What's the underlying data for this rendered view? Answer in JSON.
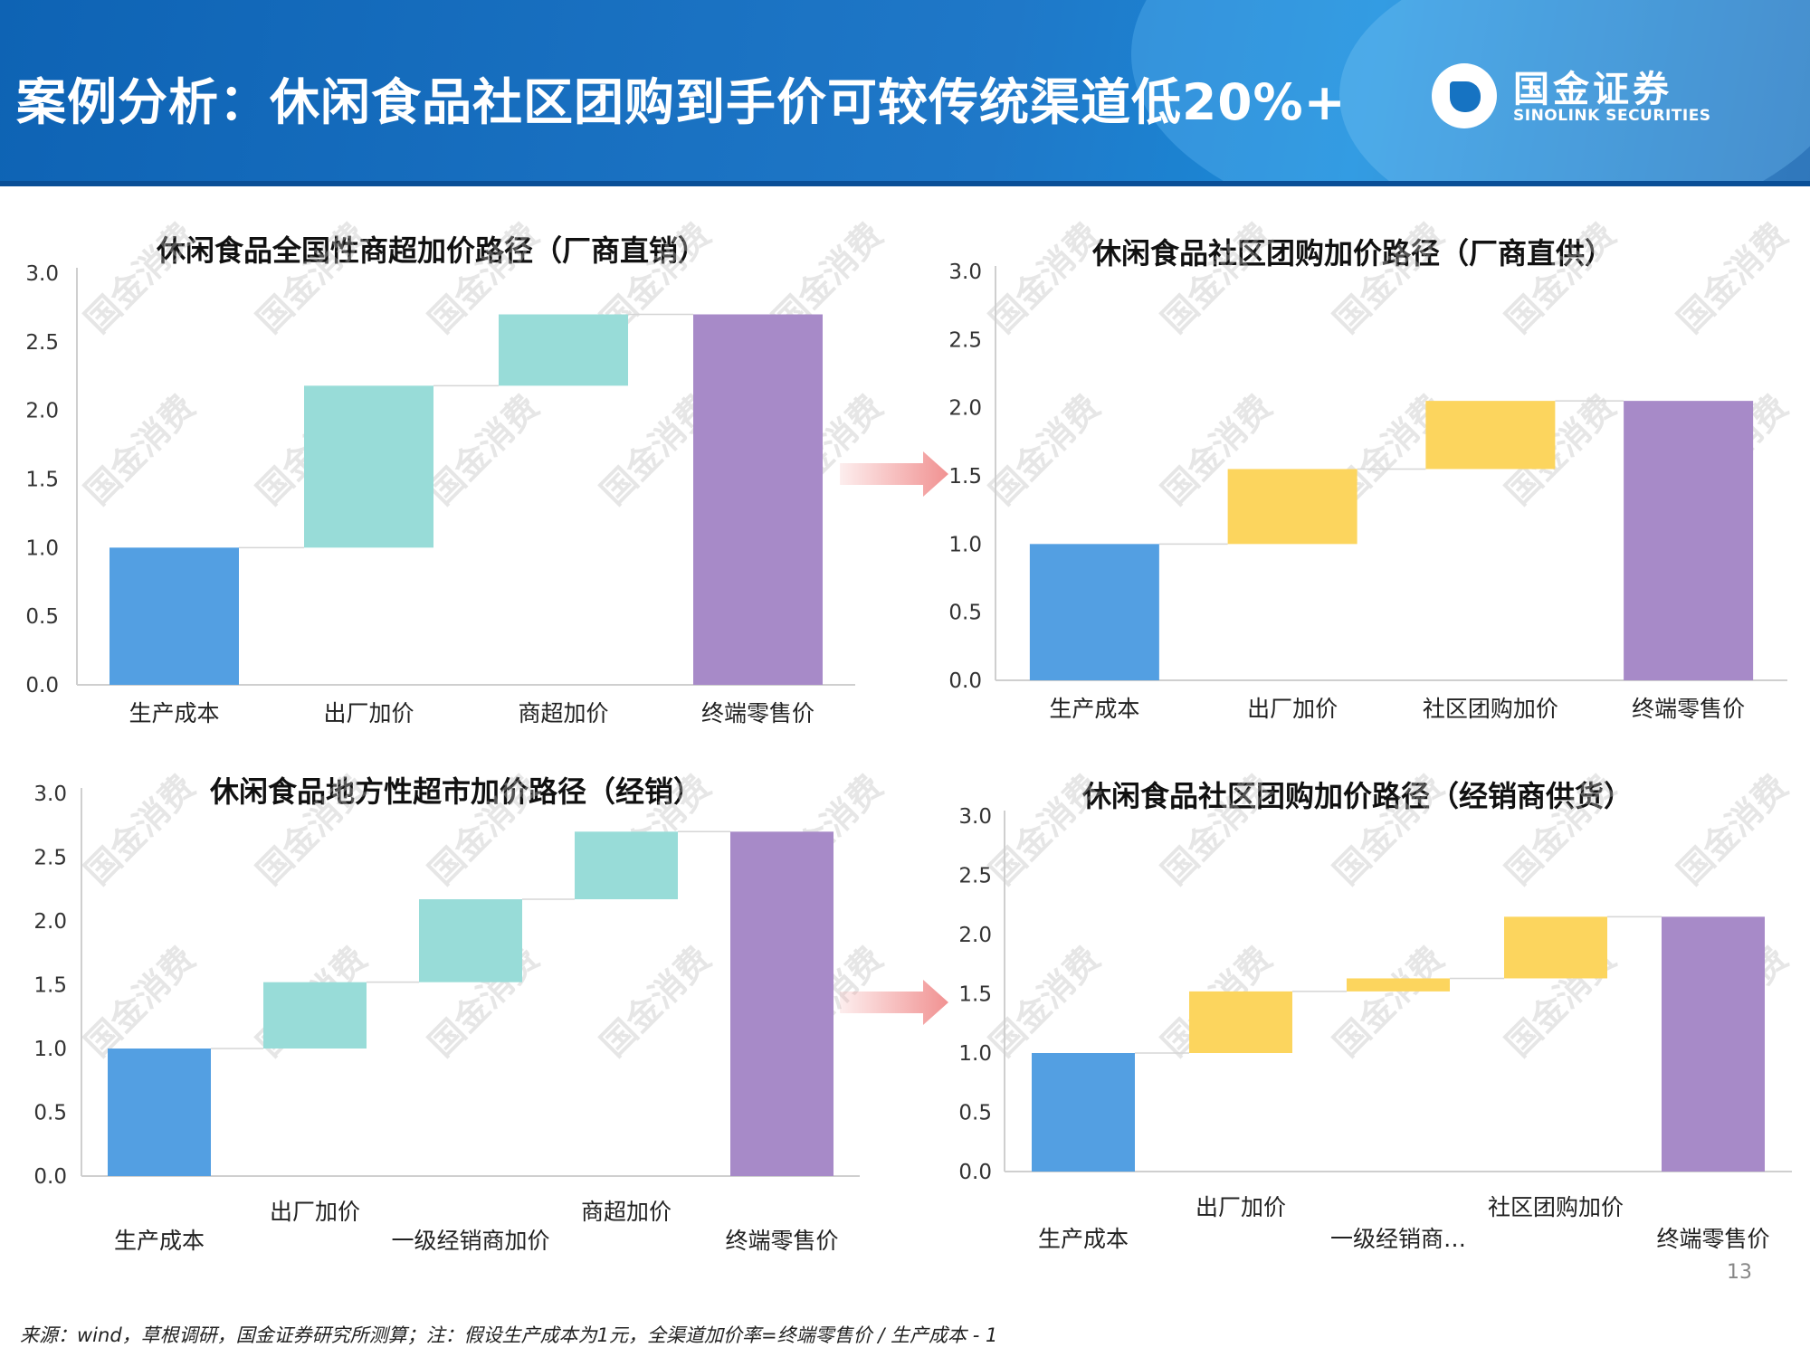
{
  "header": {
    "title": "案例分析：休闲食品社区团购到手价可较传统渠道低20%+",
    "logo_cn": "国金证券",
    "logo_en": "SINOLINK SECURITIES"
  },
  "watermark_text": "国金消费",
  "colors": {
    "cost": "#539fe2",
    "teal": "#98dcd8",
    "yellow": "#fcd55e",
    "purple": "#a78ac8",
    "arrow": "#f08c8c"
  },
  "chart_data": [
    {
      "type": "bar",
      "subtype": "waterfall",
      "title": "休闲食品全国性商超加价路径（厂商直销）",
      "categories": [
        "生产成本",
        "出厂加价",
        "商超加价",
        "终端零售价"
      ],
      "bars": [
        {
          "base": 0,
          "top": 1.0,
          "kind": "cost"
        },
        {
          "base": 1.0,
          "top": 2.18,
          "kind": "teal"
        },
        {
          "base": 2.18,
          "top": 2.7,
          "kind": "teal"
        },
        {
          "base": 0,
          "top": 2.7,
          "kind": "purple"
        }
      ],
      "ylim": [
        0,
        3.0
      ],
      "yticks": [
        "0.0",
        "0.5",
        "1.0",
        "1.5",
        "2.0",
        "2.5",
        "3.0"
      ],
      "grid": false
    },
    {
      "type": "bar",
      "subtype": "waterfall",
      "title": "休闲食品社区团购加价路径（厂商直供）",
      "categories": [
        "生产成本",
        "出厂加价",
        "社区团购加价",
        "终端零售价"
      ],
      "bars": [
        {
          "base": 0,
          "top": 1.0,
          "kind": "cost"
        },
        {
          "base": 1.0,
          "top": 1.55,
          "kind": "yellow"
        },
        {
          "base": 1.55,
          "top": 2.05,
          "kind": "yellow"
        },
        {
          "base": 0,
          "top": 2.05,
          "kind": "purple"
        }
      ],
      "ylim": [
        0,
        3.0
      ],
      "yticks": [
        "0.0",
        "0.5",
        "1.0",
        "1.5",
        "2.0",
        "2.5",
        "3.0"
      ],
      "grid": false
    },
    {
      "type": "bar",
      "subtype": "waterfall",
      "title": "休闲食品地方性超市加价路径（经销）",
      "categories": [
        "生产成本",
        "出厂加价",
        "一级经销商加价",
        "商超加价",
        "终端零售价"
      ],
      "bars": [
        {
          "base": 0,
          "top": 1.0,
          "kind": "cost"
        },
        {
          "base": 1.0,
          "top": 1.52,
          "kind": "teal"
        },
        {
          "base": 1.52,
          "top": 2.17,
          "kind": "teal"
        },
        {
          "base": 2.17,
          "top": 2.7,
          "kind": "teal"
        },
        {
          "base": 0,
          "top": 2.7,
          "kind": "purple"
        }
      ],
      "ylim": [
        0,
        3.0
      ],
      "yticks": [
        "0.0",
        "0.5",
        "1.0",
        "1.5",
        "2.0",
        "2.5",
        "3.0"
      ],
      "grid": false
    },
    {
      "type": "bar",
      "subtype": "waterfall",
      "title": "休闲食品社区团购加价路径（经销商供货）",
      "categories": [
        "生产成本",
        "出厂加价",
        "一级经销商…",
        "社区团购加价",
        "终端零售价"
      ],
      "bars": [
        {
          "base": 0,
          "top": 1.0,
          "kind": "cost"
        },
        {
          "base": 1.0,
          "top": 1.52,
          "kind": "yellow"
        },
        {
          "base": 1.52,
          "top": 1.63,
          "kind": "yellow"
        },
        {
          "base": 1.63,
          "top": 2.15,
          "kind": "yellow"
        },
        {
          "base": 0,
          "top": 2.15,
          "kind": "purple"
        }
      ],
      "ylim": [
        0,
        3.0
      ],
      "yticks": [
        "0.0",
        "0.5",
        "1.0",
        "1.5",
        "2.0",
        "2.5",
        "3.0"
      ],
      "grid": false
    }
  ],
  "page_number": "13",
  "footnote": "来源：wind，草根调研，国金证券研究所测算；注：假设生产成本为1元，全渠道加价率=终端零售价 / 生产成本 - 1"
}
